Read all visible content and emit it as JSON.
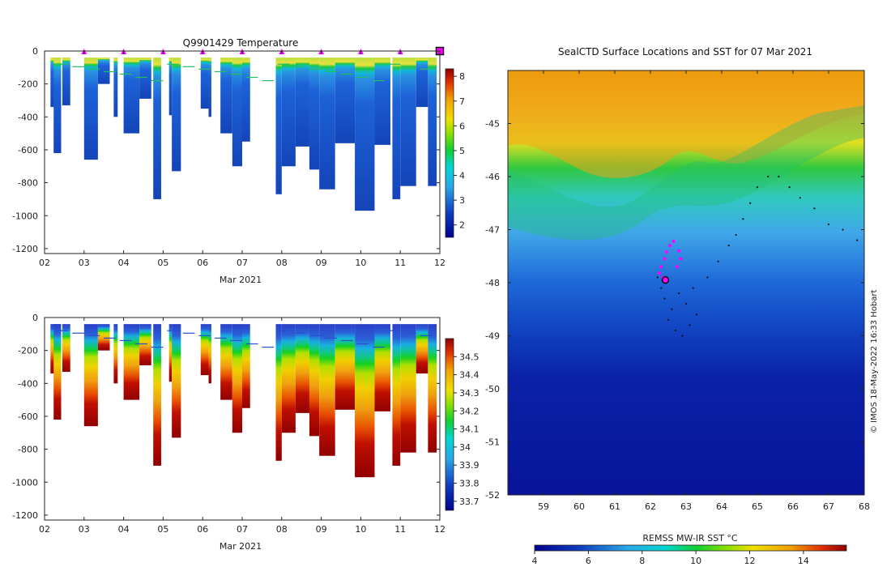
{
  "chart_data": [
    {
      "id": "temperature-section",
      "type": "heatmap",
      "title": "Q9901429  Temperature",
      "xlabel": "Mar 2021",
      "x_ticks": [
        "02",
        "03",
        "04",
        "05",
        "06",
        "07",
        "08",
        "09",
        "10",
        "11",
        "12"
      ],
      "x_range": [
        2,
        12
      ],
      "y_ticks": [
        "0",
        "-200",
        "-400",
        "-600",
        "-800",
        "-1000",
        "-1200"
      ],
      "y_range": [
        -1230,
        0
      ],
      "colorbar": {
        "ticks": [
          "2",
          "3",
          "4",
          "5",
          "6",
          "7",
          "8"
        ],
        "range": [
          1.5,
          8.3
        ]
      },
      "surface_markers_day": [
        3.0,
        4.0,
        5.0,
        6.0,
        7.0,
        8.0,
        9.0,
        10.0,
        11.0
      ],
      "current_profile_day": 12.0,
      "profiles": [
        {
          "x0": 2.15,
          "x1": 2.4,
          "depth": 340
        },
        {
          "x0": 2.23,
          "x1": 2.42,
          "depth": 620
        },
        {
          "x0": 2.45,
          "x1": 2.65,
          "depth": 330
        },
        {
          "x0": 3.0,
          "x1": 3.35,
          "depth": 660
        },
        {
          "x0": 3.35,
          "x1": 3.65,
          "depth": 200
        },
        {
          "x0": 3.75,
          "x1": 3.85,
          "depth": 400
        },
        {
          "x0": 4.0,
          "x1": 4.4,
          "depth": 500
        },
        {
          "x0": 4.4,
          "x1": 4.7,
          "depth": 290
        },
        {
          "x0": 4.75,
          "x1": 4.95,
          "depth": 900
        },
        {
          "x0": 5.15,
          "x1": 5.22,
          "depth": 390
        },
        {
          "x0": 5.22,
          "x1": 5.45,
          "depth": 730
        },
        {
          "x0": 5.95,
          "x1": 6.15,
          "depth": 350
        },
        {
          "x0": 6.15,
          "x1": 6.22,
          "depth": 400
        },
        {
          "x0": 6.45,
          "x1": 6.75,
          "depth": 500
        },
        {
          "x0": 6.75,
          "x1": 7.0,
          "depth": 700
        },
        {
          "x0": 7.0,
          "x1": 7.2,
          "depth": 550
        },
        {
          "x0": 7.85,
          "x1": 8.0,
          "depth": 870
        },
        {
          "x0": 8.0,
          "x1": 8.35,
          "depth": 700
        },
        {
          "x0": 8.35,
          "x1": 8.7,
          "depth": 580
        },
        {
          "x0": 8.7,
          "x1": 8.95,
          "depth": 720
        },
        {
          "x0": 8.95,
          "x1": 9.35,
          "depth": 840
        },
        {
          "x0": 9.35,
          "x1": 9.85,
          "depth": 560
        },
        {
          "x0": 9.85,
          "x1": 10.35,
          "depth": 970
        },
        {
          "x0": 10.35,
          "x1": 10.75,
          "depth": 570
        },
        {
          "x0": 10.8,
          "x1": 11.0,
          "depth": 900
        },
        {
          "x0": 11.0,
          "x1": 11.4,
          "depth": 820
        },
        {
          "x0": 11.4,
          "x1": 11.7,
          "depth": 340
        },
        {
          "x0": 11.7,
          "x1": 11.92,
          "depth": 820
        }
      ]
    },
    {
      "id": "salinity-section",
      "type": "heatmap",
      "title": "",
      "xlabel": "Mar 2021",
      "x_ticks": [
        "02",
        "03",
        "04",
        "05",
        "06",
        "07",
        "08",
        "09",
        "10",
        "11",
        "12"
      ],
      "x_range": [
        2,
        12
      ],
      "y_ticks": [
        "0",
        "-200",
        "-400",
        "-600",
        "-800",
        "-1000",
        "-1200"
      ],
      "y_range": [
        -1230,
        0
      ],
      "colorbar": {
        "ticks": [
          "33.7",
          "33.8",
          "33.9",
          "34",
          "34.1",
          "34.2",
          "34.3",
          "34.4",
          "34.5"
        ],
        "range": [
          33.65,
          34.6
        ]
      }
    },
    {
      "id": "sst-map",
      "type": "heatmap",
      "title": "SealCTD Surface Locations and SST for 07 Mar 2021",
      "x_ticks": [
        "59",
        "60",
        "61",
        "62",
        "63",
        "64",
        "65",
        "66",
        "67",
        "68"
      ],
      "x_range": [
        58,
        68
      ],
      "y_ticks": [
        "-45",
        "-46",
        "-47",
        "-48",
        "-49",
        "-50",
        "-51",
        "-52"
      ],
      "y_range": [
        -52,
        -44
      ],
      "colorbar": {
        "label": "REMSS MW-IR SST °C",
        "ticks": [
          "4",
          "6",
          "8",
          "10",
          "12",
          "14"
        ],
        "range": [
          4,
          15.6
        ]
      },
      "magenta_positions": [
        [
          62.55,
          -47.3
        ],
        [
          62.65,
          -47.22
        ],
        [
          62.45,
          -47.42
        ],
        [
          62.4,
          -47.55
        ],
        [
          62.3,
          -47.7
        ],
        [
          62.25,
          -47.82
        ],
        [
          62.35,
          -47.9
        ],
        [
          62.8,
          -47.4
        ],
        [
          62.75,
          -47.7
        ],
        [
          62.85,
          -47.55
        ]
      ],
      "current_position": [
        62.42,
        -47.95
      ],
      "track": [
        [
          62.2,
          -47.9
        ],
        [
          62.3,
          -48.1
        ],
        [
          62.4,
          -48.3
        ],
        [
          62.6,
          -48.5
        ],
        [
          62.5,
          -48.7
        ],
        [
          62.7,
          -48.9
        ],
        [
          62.9,
          -49.0
        ],
        [
          63.1,
          -48.8
        ],
        [
          63.3,
          -48.6
        ],
        [
          63.0,
          -48.4
        ],
        [
          62.8,
          -48.2
        ],
        [
          63.2,
          -48.1
        ],
        [
          63.6,
          -47.9
        ],
        [
          63.9,
          -47.6
        ],
        [
          64.2,
          -47.3
        ],
        [
          64.4,
          -47.1
        ],
        [
          64.6,
          -46.8
        ],
        [
          64.8,
          -46.5
        ],
        [
          65.0,
          -46.2
        ],
        [
          65.3,
          -46.0
        ],
        [
          65.6,
          -46.0
        ],
        [
          65.9,
          -46.2
        ],
        [
          66.2,
          -46.4
        ],
        [
          66.6,
          -46.6
        ],
        [
          67.0,
          -46.9
        ],
        [
          67.4,
          -47.0
        ],
        [
          67.8,
          -47.2
        ]
      ],
      "credit": "© IMOS 18-May-2022 16:33 Hobart"
    }
  ]
}
